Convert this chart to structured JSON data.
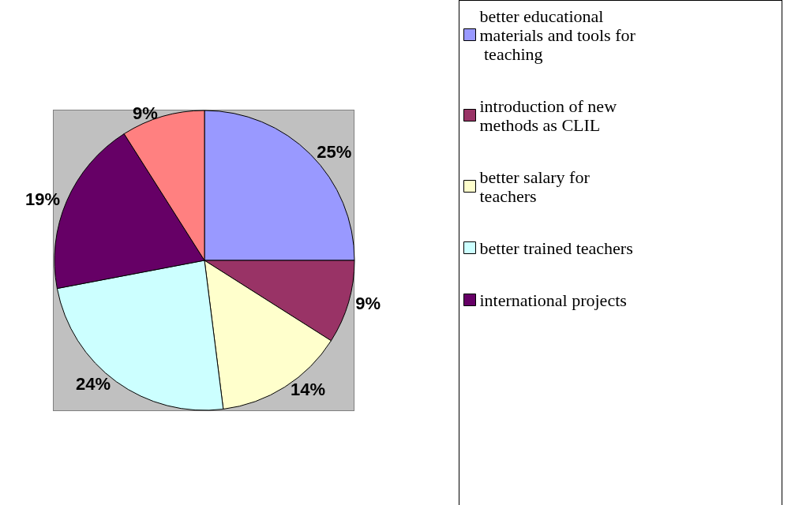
{
  "chart_data": {
    "type": "pie",
    "categories": [
      "better educational materials and tools for teaching",
      "introduction of new methods as CLIL",
      "better salary for teachers",
      "better trained teachers",
      "international projects",
      null
    ],
    "values": [
      25,
      9,
      14,
      24,
      19,
      9
    ],
    "colors": [
      "#9999ff",
      "#993366",
      "#ffffcc",
      "#ccffff",
      "#660066",
      "#ff8080"
    ],
    "value_labels": [
      "25%",
      "9%",
      "14%",
      "24%",
      "19%",
      "9%"
    ],
    "legend": "right"
  }
}
